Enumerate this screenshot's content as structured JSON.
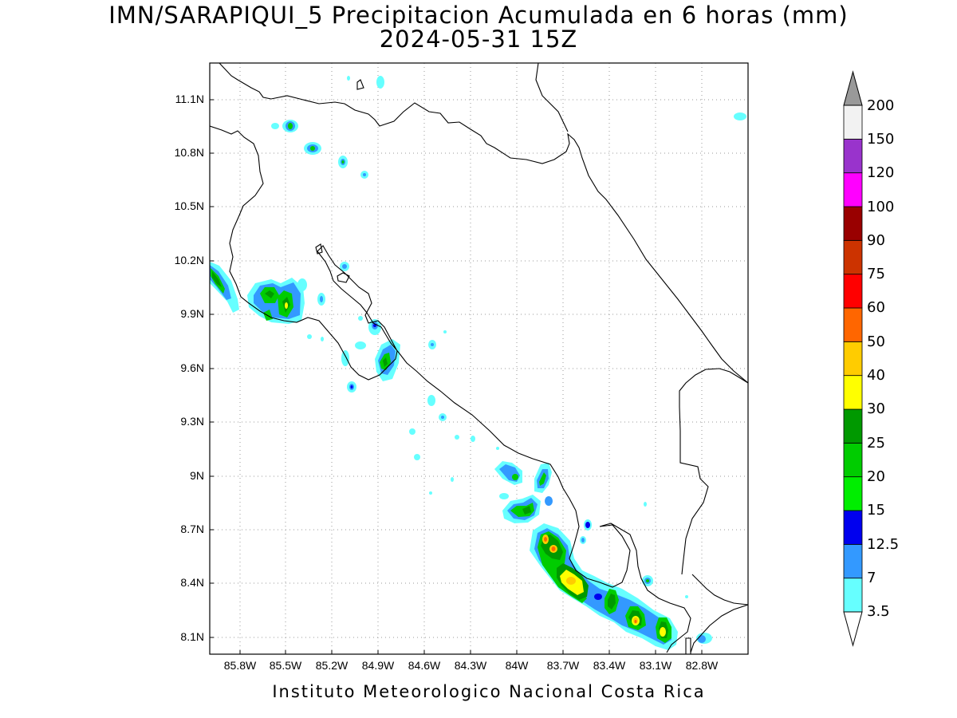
{
  "header": {
    "title": "IMN/SARAPIQUI_5 Precipitacion Acumulada en 6 horas (mm)",
    "subtitle": "2024-05-31 15Z"
  },
  "footer": {
    "credit": "Instituto Meteorologico Nacional Costa Rica"
  },
  "axes": {
    "y_ticks": [
      "11.1N",
      "10.8N",
      "10.5N",
      "10.2N",
      "9.9N",
      "9.6N",
      "9.3N",
      "9N",
      "8.7N",
      "8.4N",
      "8.1N"
    ],
    "x_ticks": [
      "85.8W",
      "85.5W",
      "85.2W",
      "84.9W",
      "84.6W",
      "84.3W",
      "84W",
      "83.7W",
      "83.4W",
      "83.1W",
      "82.8W"
    ],
    "grid": "dotted"
  },
  "colorbar": {
    "labels": [
      "3.5",
      "7",
      "12.5",
      "15",
      "20",
      "25",
      "30",
      "40",
      "50",
      "60",
      "75",
      "90",
      "100",
      "120",
      "150",
      "200"
    ],
    "colors": [
      "#66ffff",
      "#3399ff",
      "#0000ee",
      "#00ee00",
      "#00cc00",
      "#009900",
      "#ffff00",
      "#ffcc00",
      "#ff6600",
      "#ff0000",
      "#cc3300",
      "#990000",
      "#ff00ff",
      "#9933cc",
      "#f2f2f2"
    ],
    "under_color": "#ffffff",
    "over_color": "#999999"
  },
  "colors": {
    "frame": "#000000",
    "grid": "#9a9a9a",
    "coast": "#000000"
  }
}
